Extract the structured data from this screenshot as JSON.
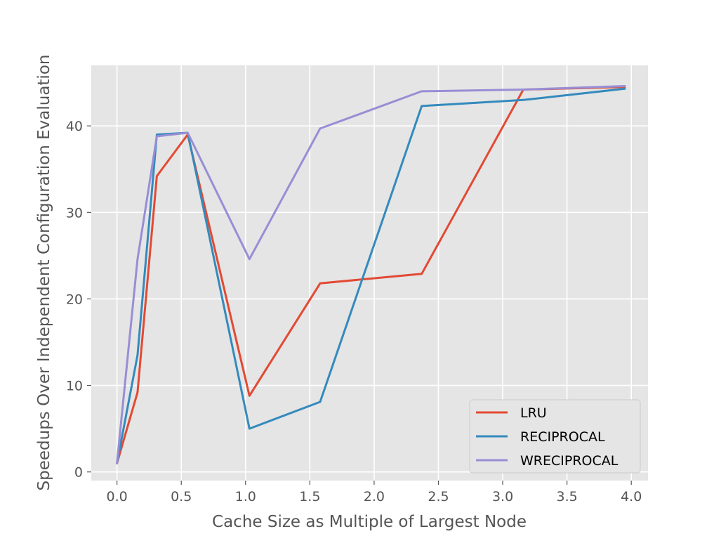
{
  "chart_data": {
    "type": "line",
    "xlabel": "Cache Size as Multiple of Largest Node",
    "ylabel": "Speedups Over Independent Configuration Evaluation",
    "xlim": [
      -0.2,
      4.13
    ],
    "ylim": [
      -1,
      47
    ],
    "xticks": [
      0.0,
      0.5,
      1.0,
      1.5,
      2.0,
      2.5,
      3.0,
      3.5,
      4.0
    ],
    "xtick_labels": [
      "0.0",
      "0.5",
      "1.0",
      "1.5",
      "2.0",
      "2.5",
      "3.0",
      "3.5",
      "4.0"
    ],
    "yticks": [
      0,
      10,
      20,
      30,
      40
    ],
    "ytick_labels": [
      "0",
      "10",
      "20",
      "30",
      "40"
    ],
    "grid": true,
    "legend_position": "lower-right",
    "series": [
      {
        "name": "LRU",
        "color": "#E24A33",
        "x": [
          0.0,
          0.16,
          0.31,
          0.55,
          1.03,
          1.58,
          2.37,
          3.16,
          3.95
        ],
        "y": [
          1.0,
          9.2,
          34.2,
          39.0,
          8.8,
          21.8,
          22.9,
          44.2,
          44.5
        ]
      },
      {
        "name": "RECIPROCAL",
        "color": "#348ABD",
        "x": [
          0.0,
          0.16,
          0.31,
          0.55,
          1.03,
          1.58,
          2.37,
          3.16,
          3.95
        ],
        "y": [
          1.0,
          13.5,
          39.0,
          39.2,
          5.0,
          8.1,
          42.3,
          43.0,
          44.3
        ]
      },
      {
        "name": "WRECIPROCAL",
        "color": "#988ED5",
        "x": [
          0.0,
          0.16,
          0.31,
          0.55,
          1.03,
          1.58,
          2.37,
          3.16,
          3.95
        ],
        "y": [
          1.0,
          24.6,
          38.8,
          39.2,
          24.6,
          39.7,
          44.0,
          44.2,
          44.6
        ]
      }
    ]
  }
}
